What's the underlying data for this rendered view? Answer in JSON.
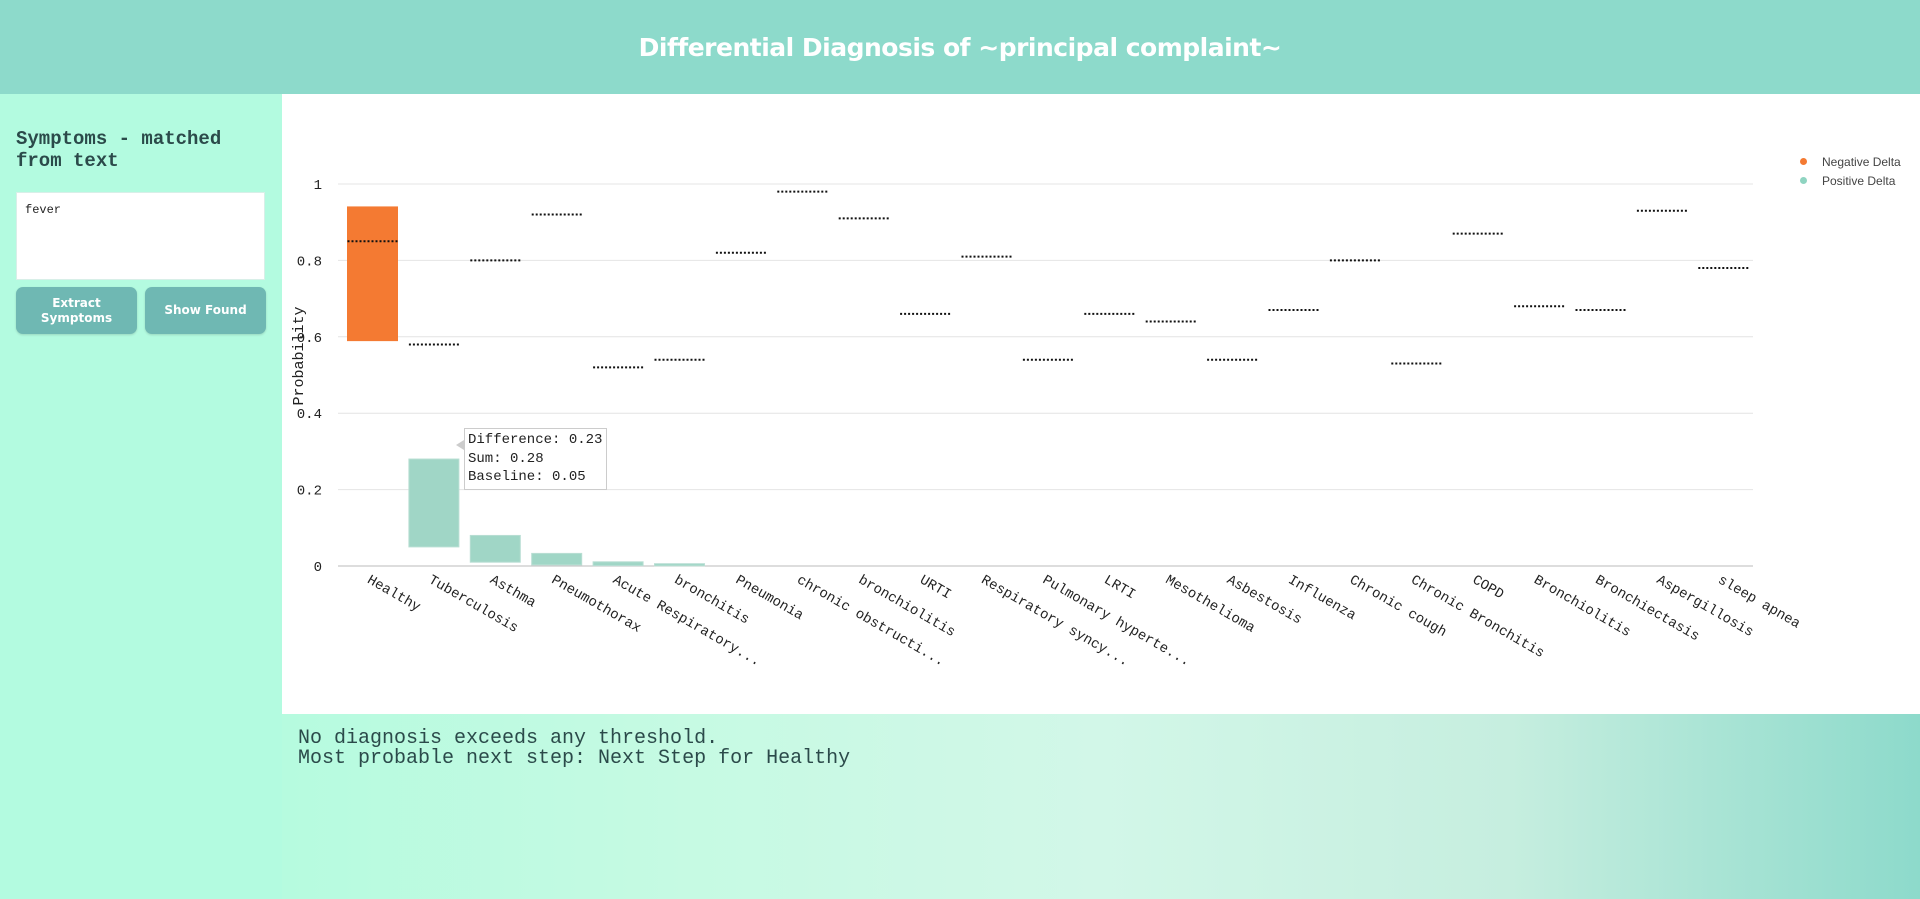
{
  "header": {
    "title": "Differential Diagnosis of ~principal complaint~"
  },
  "sidebar": {
    "heading": "Symptoms - matched from text",
    "symptom_text": "fever",
    "extract_button": "Extract Symptoms",
    "show_found_button": "Show Found"
  },
  "legend": {
    "items": [
      {
        "label": "Negative Delta",
        "color": "#f47a32"
      },
      {
        "label": "Positive Delta",
        "color": "#8fd4c1"
      }
    ]
  },
  "tooltip": {
    "lines": [
      "Difference: 0.23",
      "Sum: 0.28",
      "Baseline: 0.05"
    ]
  },
  "colors": {
    "negative": "#f47a32",
    "positive": "#a0d6c6",
    "threshold": "#111111",
    "grid": "#e4e4e4"
  },
  "chart_data": {
    "type": "bar",
    "ylabel": "Probability",
    "ylim": [
      0,
      1
    ],
    "yticks": [
      0,
      0.2,
      0.4,
      0.6,
      0.8,
      1
    ],
    "ytick_labels": [
      "0",
      "0.2",
      "0.4",
      "0.6",
      "0.8",
      "1"
    ],
    "categories": [
      "Healthy",
      "Tuberculosis",
      "Asthma",
      "Pneumothorax",
      "Acute Respiratory...",
      "bronchitis",
      "Pneumonia",
      "chronic obstructi...",
      "bronchiolitis",
      "URTI",
      "Respiratory syncy...",
      "Pulmonary hyperte...",
      "LRTI",
      "Mesothelioma",
      "Asbestosis",
      "Influenza",
      "Chronic cough",
      "Chronic Bronchitis",
      "COPD",
      "Bronchiolitis",
      "Bronchiectasis",
      "Aspergillosis",
      "sleep apnea"
    ],
    "series": [
      {
        "name": "Negative Delta",
        "base": [
          0.94,
          null,
          null,
          null,
          null,
          null,
          null,
          null,
          null,
          null,
          null,
          null,
          null,
          null,
          null,
          null,
          null,
          null,
          null,
          null,
          null,
          null,
          null
        ],
        "value": [
          0.59,
          null,
          null,
          null,
          null,
          null,
          null,
          null,
          null,
          null,
          null,
          null,
          null,
          null,
          null,
          null,
          null,
          null,
          null,
          null,
          null,
          null,
          null
        ]
      },
      {
        "name": "Positive Delta",
        "base": [
          null,
          0.05,
          0.01,
          0.003,
          0.001,
          0.0005,
          0,
          0,
          0,
          0,
          0,
          0,
          0,
          0,
          0,
          0,
          0,
          0,
          0,
          0,
          0,
          0,
          0
        ],
        "value": [
          null,
          0.28,
          0.08,
          0.033,
          0.011,
          0.006,
          0,
          0,
          0,
          0,
          0,
          0,
          0,
          0,
          0,
          0,
          0,
          0,
          0,
          0,
          0,
          0,
          0
        ]
      }
    ],
    "thresholds": [
      0.85,
      0.58,
      0.8,
      0.92,
      0.52,
      0.54,
      0.82,
      0.98,
      0.91,
      0.66,
      0.81,
      0.54,
      0.66,
      0.64,
      0.54,
      0.67,
      0.8,
      0.53,
      0.87,
      0.68,
      0.67,
      0.93,
      0.78
    ]
  },
  "footer": {
    "line1": "No diagnosis exceeds any threshold.",
    "line2": "Most probable next step: Next Step for Healthy"
  }
}
